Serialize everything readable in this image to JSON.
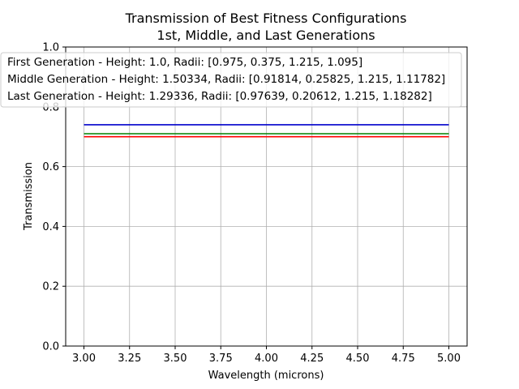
{
  "chart_data": {
    "type": "line",
    "title": "Transmission of Best Fitness Configurations",
    "subtitle": "1st, Middle, and Last Generations",
    "xlabel": "Wavelength (microns)",
    "ylabel": "Transmission",
    "xlim": [
      2.9,
      5.1
    ],
    "ylim": [
      0.0,
      1.0
    ],
    "xticks": [
      "3.00",
      "3.25",
      "3.50",
      "3.75",
      "4.00",
      "4.25",
      "4.50",
      "4.75",
      "5.00"
    ],
    "yticks": [
      "0.0",
      "0.2",
      "0.4",
      "0.6",
      "0.8",
      "1.0"
    ],
    "grid": true,
    "legend_position": "top",
    "series": [
      {
        "name": "First Generation - Height: 1.0, Radii: [0.975, 0.375, 1.215, 1.095]",
        "color": "#ff0000",
        "x": [
          3.0,
          5.0
        ],
        "y": [
          0.7,
          0.7
        ]
      },
      {
        "name": "Middle Generation - Height: 1.50334, Radii: [0.91814, 0.25825, 1.215, 1.11782]",
        "color": "#008000",
        "x": [
          3.0,
          5.0
        ],
        "y": [
          0.71,
          0.71
        ]
      },
      {
        "name": "Last Generation - Height: 1.29336, Radii: [0.97639, 0.20612, 1.215, 1.18282]",
        "color": "#0000cc",
        "x": [
          3.0,
          5.0
        ],
        "y": [
          0.74,
          0.74
        ]
      }
    ]
  }
}
